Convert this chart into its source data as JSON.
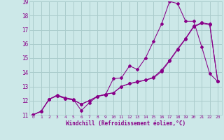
{
  "xlabel": "Windchill (Refroidissement éolien,°C)",
  "xlim": [
    -0.5,
    23.5
  ],
  "ylim": [
    11,
    19
  ],
  "xticks": [
    0,
    1,
    2,
    3,
    4,
    5,
    6,
    7,
    8,
    9,
    10,
    11,
    12,
    13,
    14,
    15,
    16,
    17,
    18,
    19,
    20,
    21,
    22,
    23
  ],
  "yticks": [
    11,
    12,
    13,
    14,
    15,
    16,
    17,
    18,
    19
  ],
  "bg_color": "#cce8e8",
  "grid_color": "#aacccc",
  "line_color": "#880088",
  "series1_y": [
    11.0,
    11.25,
    12.1,
    12.4,
    12.2,
    12.1,
    11.3,
    11.85,
    12.3,
    12.4,
    13.55,
    13.6,
    14.45,
    14.2,
    15.0,
    16.2,
    17.4,
    19.0,
    18.85,
    17.6,
    17.6,
    15.8,
    13.9,
    13.35
  ],
  "series2_y": [
    11.0,
    11.25,
    12.1,
    12.35,
    12.15,
    12.05,
    11.75,
    12.0,
    12.3,
    12.45,
    12.55,
    13.0,
    13.2,
    13.3,
    13.45,
    13.6,
    14.05,
    14.8,
    15.6,
    16.35,
    17.2,
    17.45,
    17.35,
    13.35
  ],
  "series3_y": [
    11.0,
    11.25,
    12.1,
    12.35,
    12.15,
    12.05,
    11.75,
    12.0,
    12.3,
    12.45,
    12.55,
    13.0,
    13.2,
    13.35,
    13.45,
    13.65,
    14.15,
    14.85,
    15.65,
    16.4,
    17.25,
    17.5,
    17.4,
    13.35
  ]
}
